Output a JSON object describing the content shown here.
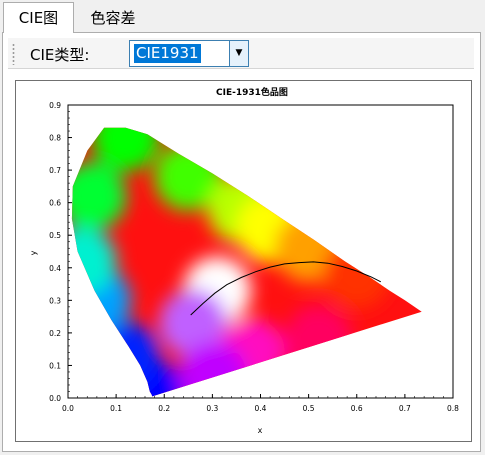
{
  "tabs": [
    {
      "label": "CIE图",
      "active": true
    },
    {
      "label": "色容差",
      "active": false
    }
  ],
  "toolbar": {
    "type_label": "CIE类型:",
    "type_value": "CIE1931"
  },
  "icons": {
    "dropdown": "chevron-down-icon",
    "grip": "toolbar-grip-icon"
  },
  "chart_data": {
    "type": "scatter",
    "title": "CIE-1931色品图",
    "xlabel": "x",
    "ylabel": "y",
    "xlim": [
      0.0,
      0.8
    ],
    "ylim": [
      0.0,
      0.9
    ],
    "xticks": [
      "0.0",
      "0.1",
      "0.2",
      "0.3",
      "0.4",
      "0.5",
      "0.6",
      "0.7",
      "0.8"
    ],
    "yticks": [
      "0.0",
      "0.1",
      "0.2",
      "0.3",
      "0.4",
      "0.5",
      "0.6",
      "0.7",
      "0.8",
      "0.9"
    ],
    "grid": false,
    "series": [
      {
        "kind": "spectral_locus",
        "x": [
          0.175,
          0.174,
          0.17,
          0.165,
          0.15,
          0.125,
          0.09,
          0.055,
          0.02,
          0.008,
          0.01,
          0.04,
          0.075,
          0.12,
          0.165,
          0.23,
          0.3,
          0.375,
          0.445,
          0.512,
          0.575,
          0.628,
          0.668,
          0.7,
          0.735
        ],
        "y": [
          0.005,
          0.01,
          0.02,
          0.05,
          0.1,
          0.16,
          0.24,
          0.33,
          0.45,
          0.55,
          0.65,
          0.76,
          0.83,
          0.83,
          0.81,
          0.75,
          0.69,
          0.62,
          0.55,
          0.485,
          0.42,
          0.37,
          0.33,
          0.3,
          0.265
        ]
      },
      {
        "kind": "planckian_locus",
        "x": [
          0.255,
          0.28,
          0.305,
          0.33,
          0.36,
          0.39,
          0.42,
          0.45,
          0.48,
          0.51,
          0.54,
          0.57,
          0.6,
          0.63,
          0.65
        ],
        "y": [
          0.255,
          0.29,
          0.322,
          0.348,
          0.37,
          0.388,
          0.402,
          0.412,
          0.416,
          0.418,
          0.414,
          0.404,
          0.39,
          0.372,
          0.357
        ]
      }
    ]
  }
}
